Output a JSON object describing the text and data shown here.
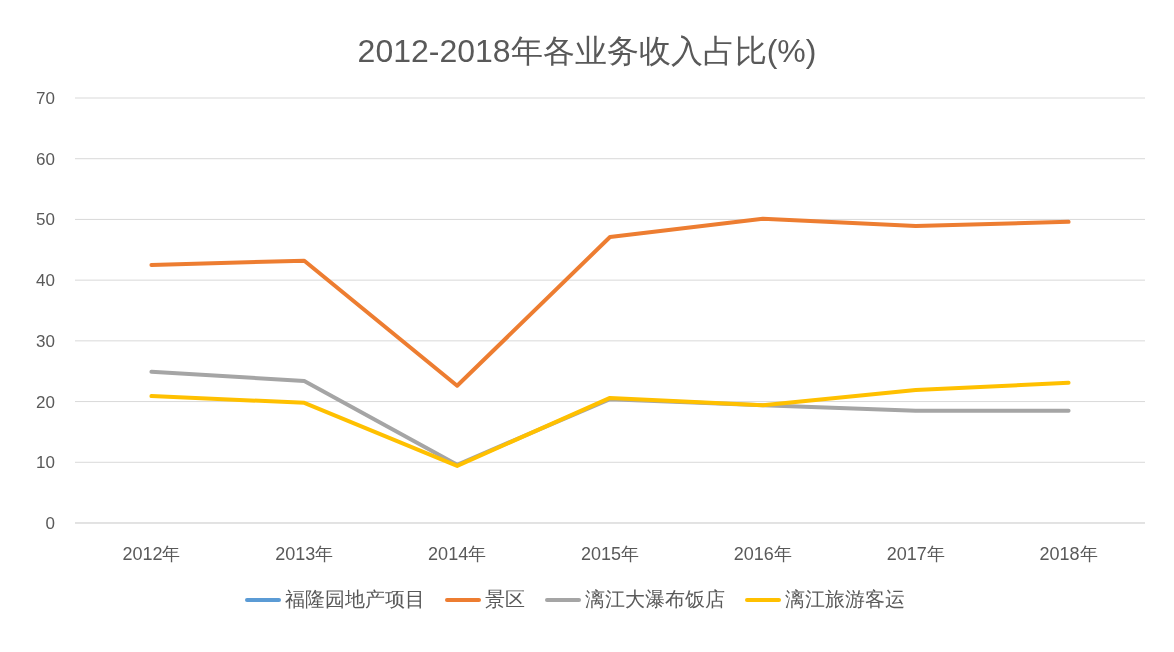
{
  "chart_data": {
    "type": "line",
    "title": "2012-2018年各业务收入占比(%)",
    "categories": [
      "2012年",
      "2013年",
      "2014年",
      "2015年",
      "2016年",
      "2017年",
      "2018年"
    ],
    "series": [
      {
        "name": "福隆园地产项目",
        "color": "#5b9bd5",
        "values": [
          null,
          null,
          null,
          null,
          null,
          null,
          null
        ]
      },
      {
        "name": "景区",
        "color": "#ed7d31",
        "values": [
          42.5,
          43.2,
          22.6,
          47.1,
          50.1,
          48.9,
          49.6
        ]
      },
      {
        "name": "漓江大瀑布饭店",
        "color": "#a5a5a5",
        "values": [
          24.9,
          23.4,
          9.6,
          20.4,
          19.4,
          18.5,
          18.5
        ]
      },
      {
        "name": "漓江旅游客运",
        "color": "#ffc000",
        "values": [
          20.9,
          19.8,
          9.4,
          20.6,
          19.4,
          21.9,
          23.1
        ]
      }
    ],
    "ylim": [
      0,
      70
    ],
    "yticks": [
      0,
      10,
      20,
      30,
      40,
      50,
      60,
      70
    ],
    "grid": "y",
    "legend": "bottom"
  }
}
